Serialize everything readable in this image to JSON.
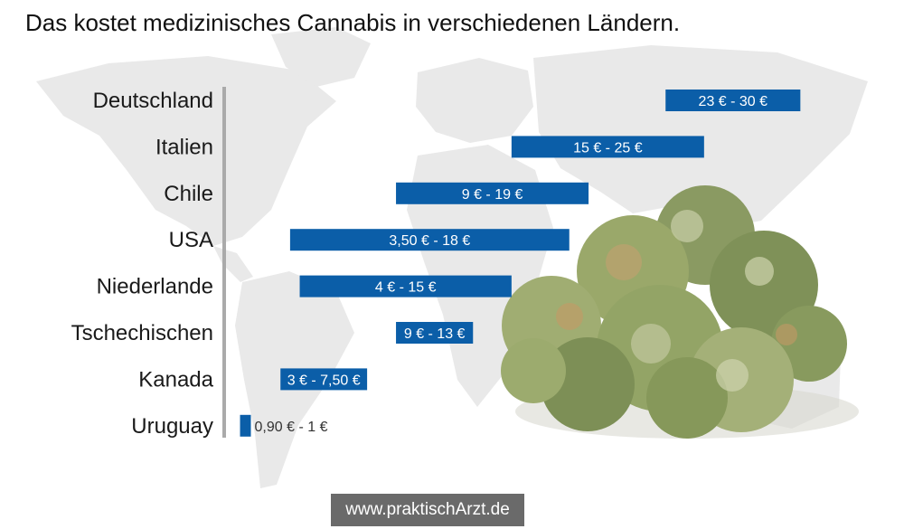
{
  "title": "Das kostet medizinisches Cannabis in verschiedenen Ländern.",
  "chart_data": {
    "type": "bar",
    "subtype": "floating-range",
    "orientation": "horizontal",
    "title": "Das kostet medizinisches Cannabis in verschiedenen Ländern.",
    "xlabel": "",
    "ylabel": "",
    "unit": "€",
    "grid": false,
    "legend": "none",
    "bar_color": "#0b5ea8",
    "categories": [
      "Deutschland",
      "Italien",
      "Chile",
      "USA",
      "Niederlande",
      "Tschechischen",
      "Kanada",
      "Uruguay"
    ],
    "ranges": [
      [
        23,
        30
      ],
      [
        15,
        25
      ],
      [
        9,
        19
      ],
      [
        3.5,
        18
      ],
      [
        4,
        15
      ],
      [
        9,
        13
      ],
      [
        3,
        7.5
      ],
      [
        0.9,
        1
      ]
    ],
    "labels": [
      "23 € - 30 €",
      "15 € - 25 €",
      "9 € - 19 €",
      "3,50 € - 18 €",
      "4 € - 15 €",
      "9 € - 13 €",
      "3 € - 7,50 €",
      "0,90 € - 1 €"
    ]
  },
  "watermark": "www.praktischArzt.de",
  "background": {
    "map": "world-map",
    "photo": "cannabis-buds"
  },
  "colors": {
    "bar": "#0b5ea8",
    "axis": "#aaaaaa",
    "map": "#e8e8e8",
    "watermark_bg": "#6a6a6a"
  }
}
